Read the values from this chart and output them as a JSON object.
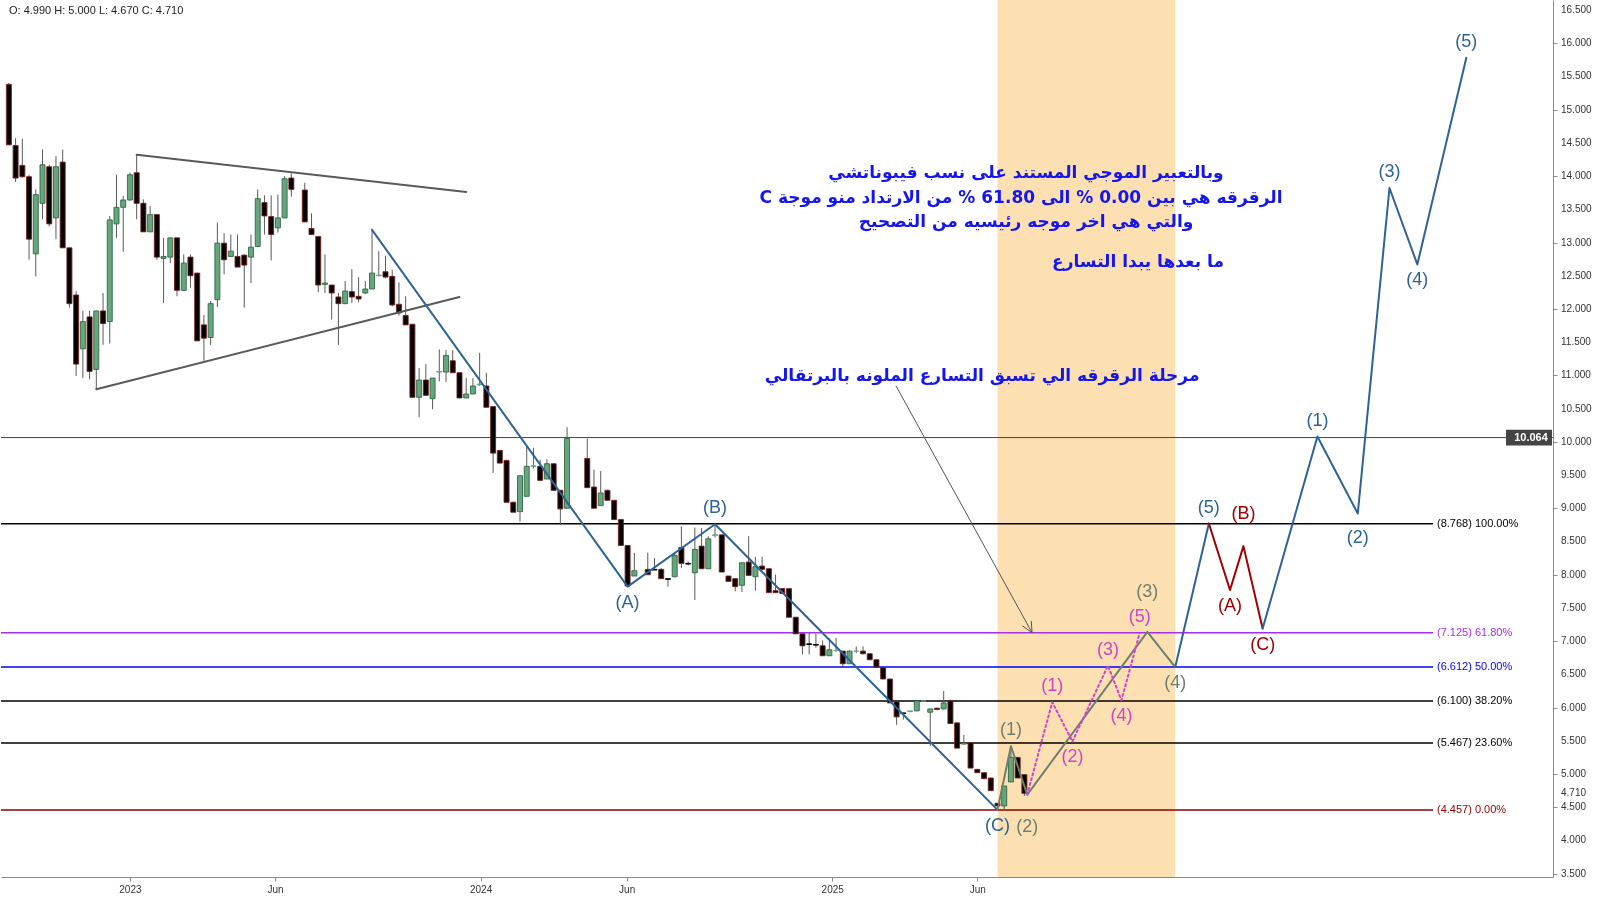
{
  "chart_data": {
    "type": "candlestick",
    "title": "O: 4.990  H: 5.000  L: 4.670  C: 4.710",
    "xlim": [
      "2022-08-25",
      "2027-01-16"
    ],
    "ylim": [
      3.45,
      16.65
    ],
    "xticks": [
      {
        "value": "2023-01-01",
        "label": "2023"
      },
      {
        "value": "2023-06-01",
        "label": "Jun"
      },
      {
        "value": "2024-01-01",
        "label": "2024"
      },
      {
        "value": "2024-06-01",
        "label": "Jun"
      },
      {
        "value": "2025-01-01",
        "label": "2025"
      },
      {
        "value": "2025-06-01",
        "label": "Jun"
      }
    ],
    "yticks": [
      {
        "value": 3.5,
        "label": "3.500"
      },
      {
        "value": 4.0,
        "label": "4.000"
      },
      {
        "value": 4.5,
        "label": "4.500"
      },
      {
        "value": 4.71,
        "label": "4.710"
      },
      {
        "value": 5.0,
        "label": "5.000"
      },
      {
        "value": 5.5,
        "label": "5.500"
      },
      {
        "value": 6.0,
        "label": "6.000"
      },
      {
        "value": 6.5,
        "label": "6.500"
      },
      {
        "value": 7.0,
        "label": "7.000"
      },
      {
        "value": 7.5,
        "label": "7.500"
      },
      {
        "value": 8.0,
        "label": "8.000"
      },
      {
        "value": 8.5,
        "label": "8.500"
      },
      {
        "value": 9.0,
        "label": "9.000"
      },
      {
        "value": 9.5,
        "label": "9.500"
      },
      {
        "value": 10.0,
        "label": "10.000"
      },
      {
        "value": 10.5,
        "label": "10.500"
      },
      {
        "value": 11.0,
        "label": "11.000"
      },
      {
        "value": 11.5,
        "label": "11.500"
      },
      {
        "value": 12.0,
        "label": "12.000"
      },
      {
        "value": 12.5,
        "label": "12.500"
      },
      {
        "value": 13.0,
        "label": "13.000"
      },
      {
        "value": 13.5,
        "label": "13.500"
      },
      {
        "value": 14.0,
        "label": "14.000"
      },
      {
        "value": 14.5,
        "label": "14.500"
      },
      {
        "value": 15.0,
        "label": "15.000"
      },
      {
        "value": 15.5,
        "label": "15.500"
      },
      {
        "value": 16.0,
        "label": "16.000"
      },
      {
        "value": 16.5,
        "label": "16.500"
      }
    ],
    "x": [
      "2022-08-28",
      "2022-09-04",
      "2022-09-11",
      "2022-09-18",
      "2022-09-25",
      "2022-10-02",
      "2022-10-09",
      "2022-10-16",
      "2022-10-23",
      "2022-10-30",
      "2022-11-06",
      "2022-11-13",
      "2022-11-20",
      "2022-11-27",
      "2022-12-04",
      "2022-12-11",
      "2022-12-18",
      "2022-12-25",
      "2023-01-01",
      "2023-01-08",
      "2023-01-15",
      "2023-01-22",
      "2023-01-29",
      "2023-02-05",
      "2023-02-12",
      "2023-02-19",
      "2023-02-26",
      "2023-03-05",
      "2023-03-12",
      "2023-03-19",
      "2023-03-26",
      "2023-04-02",
      "2023-04-09",
      "2023-04-16",
      "2023-04-23",
      "2023-04-30",
      "2023-05-07",
      "2023-05-14",
      "2023-05-21",
      "2023-05-28",
      "2023-06-04",
      "2023-06-11",
      "2023-06-18",
      "2023-07-02",
      "2023-07-09",
      "2023-07-16",
      "2023-07-23",
      "2023-07-30",
      "2023-08-06",
      "2023-08-13",
      "2023-08-20",
      "2023-08-27",
      "2023-09-03",
      "2023-09-10",
      "2023-09-17",
      "2023-09-24",
      "2023-10-01",
      "2023-10-08",
      "2023-10-15",
      "2023-10-22",
      "2023-10-29",
      "2023-11-05",
      "2023-11-12",
      "2023-11-19",
      "2023-11-26",
      "2023-12-03",
      "2023-12-10",
      "2023-12-17",
      "2023-12-24",
      "2023-12-31",
      "2024-01-07",
      "2024-01-14",
      "2024-01-21",
      "2024-01-28",
      "2024-02-04",
      "2024-02-11",
      "2024-02-18",
      "2024-02-25",
      "2024-03-03",
      "2024-03-10",
      "2024-03-17",
      "2024-03-24",
      "2024-03-31",
      "2024-04-21",
      "2024-04-28",
      "2024-05-05",
      "2024-05-12",
      "2024-05-19",
      "2024-05-26",
      "2024-06-02",
      "2024-06-09",
      "2024-06-23",
      "2024-06-30",
      "2024-07-07",
      "2024-07-14",
      "2024-07-21",
      "2024-07-28",
      "2024-08-04",
      "2024-08-11",
      "2024-08-18",
      "2024-08-25",
      "2024-09-01",
      "2024-09-08",
      "2024-09-15",
      "2024-09-22",
      "2024-09-29",
      "2024-10-06",
      "2024-10-13",
      "2024-10-20",
      "2024-10-27",
      "2024-11-03",
      "2024-11-10",
      "2024-11-17",
      "2024-11-24",
      "2024-12-01",
      "2024-12-08",
      "2024-12-15",
      "2024-12-22",
      "2024-12-29",
      "2025-01-05",
      "2025-01-12",
      "2025-01-19",
      "2025-01-26",
      "2025-02-02",
      "2025-02-09",
      "2025-02-16",
      "2025-02-23",
      "2025-03-02",
      "2025-03-09",
      "2025-03-16",
      "2025-03-23",
      "2025-03-30",
      "2025-04-06",
      "2025-04-13",
      "2025-04-20",
      "2025-04-27",
      "2025-05-04",
      "2025-05-11",
      "2025-05-18",
      "2025-05-25",
      "2025-06-01",
      "2025-06-08",
      "2025-06-15",
      "2025-06-22",
      "2025-06-29",
      "2025-07-06",
      "2025-07-13",
      "2025-07-20"
    ],
    "ohlc": [
      [
        15.38,
        15.4,
        14.47,
        14.47
      ],
      [
        14.46,
        14.57,
        13.91,
        13.97
      ],
      [
        14.16,
        14.56,
        13.97,
        13.99
      ],
      [
        13.99,
        14.02,
        12.74,
        13.05
      ],
      [
        12.83,
        13.8,
        12.49,
        13.72
      ],
      [
        13.59,
        14.4,
        13.35,
        14.17
      ],
      [
        14.14,
        14.17,
        13.24,
        13.28
      ],
      [
        13.37,
        14.3,
        13.05,
        14.14
      ],
      [
        14.21,
        14.4,
        12.92,
        12.92
      ],
      [
        12.92,
        12.92,
        12.02,
        12.08
      ],
      [
        12.21,
        12.27,
        10.99,
        11.17
      ],
      [
        11.4,
        11.97,
        10.96,
        11.81
      ],
      [
        11.88,
        11.97,
        10.94,
        11.06
      ],
      [
        11.09,
        11.97,
        10.79,
        11.97
      ],
      [
        11.97,
        12.24,
        11.46,
        11.78
      ],
      [
        11.81,
        13.4,
        11.48,
        13.34
      ],
      [
        13.28,
        14.02,
        13.07,
        13.53
      ],
      [
        13.53,
        13.7,
        12.86,
        13.64
      ],
      [
        13.64,
        14.05,
        13.63,
        14.02
      ],
      [
        14.05,
        14.32,
        13.35,
        13.59
      ],
      [
        13.59,
        13.65,
        13.16,
        13.16
      ],
      [
        13.16,
        13.55,
        13.16,
        13.42
      ],
      [
        13.42,
        13.42,
        12.74,
        12.78
      ],
      [
        12.76,
        13.07,
        12.09,
        12.79
      ],
      [
        12.78,
        13.07,
        12.69,
        13.07
      ],
      [
        13.07,
        13.07,
        12.19,
        12.28
      ],
      [
        12.28,
        12.82,
        12.27,
        12.69
      ],
      [
        12.78,
        12.82,
        12.32,
        12.5
      ],
      [
        12.54,
        12.54,
        11.52,
        11.52
      ],
      [
        11.76,
        11.91,
        11.22,
        11.56
      ],
      [
        11.57,
        12.12,
        11.46,
        12.08
      ],
      [
        12.14,
        13.3,
        12.03,
        12.99
      ],
      [
        12.99,
        13.14,
        12.52,
        12.74
      ],
      [
        12.79,
        13.12,
        12.78,
        12.87
      ],
      [
        12.79,
        13.12,
        12.63,
        12.63
      ],
      [
        12.81,
        12.82,
        12.02,
        12.66
      ],
      [
        12.78,
        13.12,
        12.39,
        12.93
      ],
      [
        12.94,
        13.8,
        12.94,
        13.66
      ],
      [
        13.6,
        13.71,
        13.12,
        13.4
      ],
      [
        13.39,
        13.71,
        12.73,
        13.12
      ],
      [
        13.22,
        13.72,
        13.15,
        13.37
      ],
      [
        13.37,
        14.0,
        13.37,
        13.96
      ],
      [
        13.97,
        14.04,
        13.69,
        13.8
      ],
      [
        13.79,
        13.9,
        13.31,
        13.31
      ],
      [
        13.21,
        13.44,
        13.12,
        13.12
      ],
      [
        13.09,
        13.09,
        12.25,
        12.36
      ],
      [
        12.37,
        12.82,
        12.24,
        12.39
      ],
      [
        12.36,
        12.36,
        11.84,
        12.24
      ],
      [
        12.18,
        12.24,
        11.46,
        12.08
      ],
      [
        12.08,
        12.42,
        12.07,
        12.27
      ],
      [
        12.26,
        12.6,
        12.09,
        12.18
      ],
      [
        12.19,
        12.48,
        12.1,
        12.15
      ],
      [
        12.24,
        12.42,
        12.22,
        12.3
      ],
      [
        12.3,
        13.19,
        12.3,
        12.54
      ],
      [
        12.5,
        12.87,
        12.49,
        12.51
      ],
      [
        12.56,
        12.8,
        12.46,
        12.48
      ],
      [
        12.49,
        12.59,
        12.04,
        12.06
      ],
      [
        12.07,
        12.4,
        11.9,
        11.94
      ],
      [
        11.9,
        12.19,
        11.76,
        11.76
      ],
      [
        11.77,
        11.77,
        10.66,
        10.67
      ],
      [
        10.67,
        11.11,
        10.37,
        10.93
      ],
      [
        10.93,
        11.17,
        10.7,
        10.7
      ],
      [
        10.65,
        10.96,
        10.49,
        10.96
      ],
      [
        11.05,
        11.39,
        10.91,
        11.06
      ],
      [
        11.05,
        11.38,
        10.9,
        11.3
      ],
      [
        11.22,
        11.38,
        11.04,
        11.04
      ],
      [
        11.04,
        11.04,
        10.66,
        10.66
      ],
      [
        10.66,
        10.96,
        10.66,
        10.72
      ],
      [
        10.72,
        10.96,
        10.72,
        10.84
      ],
      [
        10.86,
        11.34,
        10.84,
        10.87
      ],
      [
        10.84,
        11.04,
        10.52,
        10.52
      ],
      [
        10.53,
        10.53,
        9.53,
        9.83
      ],
      [
        9.87,
        9.88,
        9.68,
        9.68
      ],
      [
        9.72,
        9.73,
        9.09,
        9.09
      ],
      [
        9.09,
        9.1,
        8.94,
        8.94
      ],
      [
        8.95,
        9.49,
        8.8,
        9.49
      ],
      [
        9.18,
        9.93,
        9.18,
        9.63
      ],
      [
        9.63,
        9.91,
        9.6,
        9.64
      ],
      [
        9.63,
        9.73,
        9.42,
        9.42
      ],
      [
        9.44,
        9.74,
        9.44,
        9.67
      ],
      [
        9.67,
        9.67,
        9.27,
        9.27
      ],
      [
        9.27,
        9.27,
        8.75,
        8.99
      ],
      [
        9.0,
        10.22,
        9.0,
        10.05
      ],
      [
        9.75,
        10.05,
        9.31,
        9.31
      ],
      [
        9.32,
        9.58,
        9.0,
        9.0
      ],
      [
        9.04,
        9.56,
        9.04,
        9.23
      ],
      [
        9.27,
        9.28,
        9.12,
        9.12
      ],
      [
        9.12,
        9.12,
        8.83,
        8.83
      ],
      [
        8.83,
        8.83,
        8.44,
        8.44
      ],
      [
        8.44,
        8.44,
        7.82,
        7.83
      ],
      [
        7.98,
        8.33,
        7.98,
        8.06
      ],
      [
        8.08,
        8.33,
        8.0,
        8.0
      ],
      [
        8.08,
        8.25,
        8.07,
        8.07
      ],
      [
        8.08,
        8.1,
        7.94,
        7.94
      ],
      [
        7.94,
        7.94,
        7.82,
        7.93
      ],
      [
        7.97,
        8.33,
        7.96,
        8.29
      ],
      [
        8.41,
        8.73,
        8.1,
        8.17
      ],
      [
        8.17,
        8.2,
        8.14,
        8.16
      ],
      [
        8.03,
        8.71,
        7.62,
        8.38
      ],
      [
        8.43,
        8.7,
        8.09,
        8.09
      ],
      [
        8.09,
        8.58,
        8.09,
        8.54
      ],
      [
        8.59,
        8.76,
        8.56,
        8.6
      ],
      [
        8.6,
        8.6,
        8.04,
        8.04
      ],
      [
        7.98,
        7.98,
        7.9,
        7.9
      ],
      [
        7.94,
        7.94,
        7.75,
        7.82
      ],
      [
        7.84,
        8.18,
        7.74,
        8.18
      ],
      [
        8.19,
        8.58,
        7.98,
        7.99
      ],
      [
        7.97,
        8.27,
        7.76,
        8.12
      ],
      [
        8.13,
        8.27,
        8.08,
        8.08
      ],
      [
        8.09,
        8.09,
        7.73,
        7.73
      ],
      [
        7.76,
        8.0,
        7.73,
        7.73
      ],
      [
        7.79,
        7.79,
        7.72,
        7.72
      ],
      [
        7.79,
        7.79,
        7.36,
        7.36
      ],
      [
        7.36,
        7.36,
        7.11,
        7.11
      ],
      [
        7.11,
        7.11,
        6.8,
        6.93
      ],
      [
        6.96,
        7.12,
        6.8,
        6.95
      ],
      [
        6.95,
        7.11,
        6.9,
        6.94
      ],
      [
        6.93,
        7.01,
        6.78,
        6.78
      ],
      [
        6.78,
        7.04,
        6.78,
        6.87
      ],
      [
        6.86,
        7.05,
        6.84,
        6.86
      ],
      [
        6.85,
        6.85,
        6.62,
        6.66
      ],
      [
        6.66,
        6.86,
        6.66,
        6.85
      ],
      [
        6.85,
        6.92,
        6.82,
        6.85
      ],
      [
        6.85,
        6.92,
        6.8,
        6.81
      ],
      [
        6.81,
        6.81,
        6.72,
        6.72
      ],
      [
        6.72,
        6.72,
        6.61,
        6.61
      ],
      [
        6.6,
        6.6,
        6.43,
        6.43
      ],
      [
        6.43,
        6.43,
        6.07,
        6.07
      ],
      [
        6.09,
        6.09,
        5.74,
        5.86
      ],
      [
        5.92,
        5.92,
        5.82,
        5.91
      ],
      [
        5.94,
        5.95,
        5.93,
        5.95
      ],
      [
        5.95,
        6.1,
        5.95,
        6.1
      ],
      [
        6.1,
        6.1,
        6.09,
        6.1
      ],
      [
        5.93,
        5.98,
        5.42,
        5.98
      ],
      [
        5.99,
        6.0,
        5.96,
        5.97
      ],
      [
        5.98,
        6.25,
        5.97,
        6.07
      ],
      [
        6.1,
        6.12,
        5.76,
        5.76
      ],
      [
        5.77,
        5.77,
        5.39,
        5.39
      ],
      [
        5.45,
        5.59,
        5.44,
        5.45
      ],
      [
        5.47,
        5.47,
        5.09,
        5.09
      ],
      [
        5.07,
        5.07,
        5.02,
        5.02
      ],
      [
        5.02,
        5.02,
        4.93,
        4.93
      ],
      [
        4.94,
        4.94,
        4.75,
        4.75
      ],
      [
        4.56,
        4.56,
        4.46,
        4.52
      ],
      [
        4.52,
        4.82,
        4.46,
        4.82
      ],
      [
        4.88,
        5.42,
        4.88,
        5.25
      ],
      [
        5.25,
        5.25,
        4.94,
        4.94
      ],
      [
        4.99,
        5.0,
        4.67,
        4.71
      ]
    ],
    "colors": [
      "#000000",
      "#000000",
      "#000000",
      "#000000",
      "#66a57d",
      "#66a57d",
      "#000000",
      "#66a57d",
      "#000000",
      "#000000",
      "#000000",
      "#66a57d",
      "#000000",
      "#66a57d",
      "#000000",
      "#66a57d",
      "#66a57d",
      "#66a57d",
      "#66a57d",
      "#000000",
      "#000000",
      "#66a57d",
      "#000000",
      "#66a57d",
      "#66a57d",
      "#000000",
      "#66a57d",
      "#000000",
      "#000000",
      "#000000",
      "#66a57d",
      "#66a57d",
      "#000000",
      "#66a57d",
      "#000000",
      "#000000",
      "#66a57d",
      "#66a57d",
      "#000000",
      "#000000",
      "#66a57d",
      "#66a57d",
      "#000000",
      "#000000",
      "#000000",
      "#000000",
      "#66a57d",
      "#000000",
      "#000000",
      "#66a57d",
      "#000000",
      "#000000",
      "#66a57d",
      "#66a57d",
      "#66a57d",
      "#000000",
      "#000000",
      "#000000",
      "#000000",
      "#000000",
      "#66a57d",
      "#000000",
      "#66a57d",
      "#66a57d",
      "#66a57d",
      "#000000",
      "#000000",
      "#66a57d",
      "#66a57d",
      "#66a57d",
      "#000000",
      "#000000",
      "#000000",
      "#000000",
      "#000000",
      "#66a57d",
      "#66a57d",
      "#66a57d",
      "#000000",
      "#66a57d",
      "#000000",
      "#000000",
      "#66a57d",
      "#000000",
      "#000000",
      "#66a57d",
      "#000000",
      "#000000",
      "#000000",
      "#000000",
      "#66a57d",
      "#000000",
      "#000000",
      "#000000",
      "#000000",
      "#66a57d",
      "#000000",
      "#000000",
      "#66a57d",
      "#000000",
      "#66a57d",
      "#66a57d",
      "#000000",
      "#000000",
      "#000000",
      "#66a57d",
      "#000000",
      "#66a57d",
      "#000000",
      "#000000",
      "#000000",
      "#000000",
      "#000000",
      "#000000",
      "#000000",
      "#000000",
      "#000000",
      "#000000",
      "#66a57d",
      "#66a57d",
      "#000000",
      "#66a57d",
      "#66a57d",
      "#000000",
      "#000000",
      "#000000",
      "#000000",
      "#000000",
      "#000000",
      "#000000",
      "#66a57d",
      "#66a57d",
      "#66a57d",
      "#66a57d",
      "#000000",
      "#66a57d",
      "#000000",
      "#000000",
      "#66a57d",
      "#000000",
      "#000000",
      "#000000",
      "#000000",
      "#000000",
      "#66a57d",
      "#66a57d",
      "#000000",
      "#000000"
    ],
    "series": [
      {
        "type": "line",
        "color": "#595959",
        "x": [
          "2023-01-08",
          "2023-12-17"
        ],
        "values": [
          14.32,
          13.76
        ]
      },
      {
        "type": "line",
        "color": "#595959",
        "x": [
          "2022-11-27",
          "2023-12-10"
        ],
        "values": [
          10.79,
          12.18
        ]
      },
      {
        "type": "line",
        "color": "#2e6393",
        "x": [
          "2023-09-10",
          "2024-06-02",
          "2024-09-01",
          "2025-06-22"
        ],
        "values": [
          13.19,
          7.82,
          8.76,
          4.46
        ]
      },
      {
        "type": "line",
        "color": "#6f7f6f",
        "x": [
          "2025-06-22",
          "2025-07-06",
          "2025-07-23",
          "2025-11-25",
          "2025-12-24"
        ],
        "values": [
          4.46,
          5.42,
          4.69,
          7.14,
          6.61
        ]
      },
      {
        "type": "line",
        "color": "#cc44cc",
        "line_style": "dotted",
        "x": [
          "2025-07-23",
          "2025-08-18",
          "2025-09-08",
          "2025-10-15",
          "2025-10-29",
          "2025-11-17"
        ],
        "values": [
          4.69,
          6.08,
          5.49,
          6.63,
          6.11,
          7.12
        ]
      },
      {
        "type": "line",
        "color": "#2e6393",
        "x": [
          "2025-12-24",
          "2026-01-28"
        ],
        "values": [
          6.61,
          8.77
        ]
      },
      {
        "type": "line",
        "color": "#a00000",
        "x": [
          "2026-01-28",
          "2026-02-19",
          "2026-03-05",
          "2026-03-25"
        ],
        "values": [
          8.77,
          7.77,
          8.43,
          7.19
        ]
      },
      {
        "type": "line",
        "color": "#2e6393",
        "x": [
          "2026-03-25",
          "2026-05-21",
          "2026-07-02",
          "2026-08-04",
          "2026-09-02",
          "2026-10-23"
        ],
        "values": [
          7.19,
          10.08,
          8.92,
          13.82,
          12.67,
          15.78
        ]
      }
    ],
    "ref_lines": [
      {
        "axis": "y",
        "value": 10.064,
        "label": "10.064",
        "color": "#444444"
      },
      {
        "axis": "y",
        "value": 8.768,
        "label": "(8.768) 100.00%",
        "color": "#000000"
      },
      {
        "axis": "y",
        "value": 7.125,
        "label": "(7.125) 61.80%",
        "color": "#a52ff0"
      },
      {
        "axis": "y",
        "value": 6.612,
        "label": "(6.612) 50.00%",
        "color": "#0000ff"
      },
      {
        "axis": "y",
        "value": 6.1,
        "label": "(6.100) 38.20%",
        "color": "#000000"
      },
      {
        "axis": "y",
        "value": 5.467,
        "label": "(5.467) 23.60%",
        "color": "#000000"
      },
      {
        "axis": "y",
        "value": 4.457,
        "label": "(4.457) 0.00%",
        "color": "#8b0000"
      }
    ],
    "bands": [
      {
        "axis": "x",
        "from": "2025-06-22",
        "to": "2025-12-24",
        "color": "#fde0b2"
      }
    ],
    "annotations": [
      "وبالتعبير الموجي  المستند على نسب فيبوناتشي",
      "الرقرقه هي بين 0.00 % الى 61.80 % من الارتداد منو موجة C",
      "والتي هي اخر موجه رئيسيه من التصحيح",
      "ما بعدها يبدا التسارع",
      {
        "text": "مرحلة الرقرقه الي تسبق التسارع الملونه بالبرتقالي",
        "x": "2025-07-28",
        "y": 7.125
      },
      {
        "text": "(A)",
        "x": "2024-06-02",
        "y": 7.82
      },
      {
        "text": "(B)",
        "x": "2024-09-01",
        "y": 8.76
      },
      {
        "text": "(C)",
        "x": "2025-06-22",
        "y": 4.46
      },
      {
        "text": "(1)",
        "x": "2025-07-06",
        "y": 5.42
      },
      {
        "text": "(2)",
        "x": "2025-07-23",
        "y": 4.69
      },
      {
        "text": "(1)",
        "x": "2025-08-18",
        "y": 6.08
      },
      {
        "text": "(2)",
        "x": "2025-09-08",
        "y": 5.49
      },
      {
        "text": "(3)",
        "x": "2025-10-15",
        "y": 6.63
      },
      {
        "text": "(4)",
        "x": "2025-10-29",
        "y": 6.11
      },
      {
        "text": "(5)",
        "x": "2025-11-17",
        "y": 7.12
      },
      {
        "text": "(3)",
        "x": "2025-11-25",
        "y": 7.14
      },
      {
        "text": "(4)",
        "x": "2025-12-24",
        "y": 6.61
      },
      {
        "text": "(5)",
        "x": "2026-01-28",
        "y": 8.77
      },
      {
        "text": "(A)",
        "x": "2026-02-19",
        "y": 7.77
      },
      {
        "text": "(B)",
        "x": "2026-03-05",
        "y": 8.43
      },
      {
        "text": "(C)",
        "x": "2026-03-25",
        "y": 7.19
      },
      {
        "text": "(1)",
        "x": "2026-05-21",
        "y": 10.08
      },
      {
        "text": "(2)",
        "x": "2026-07-02",
        "y": 8.92
      },
      {
        "text": "(3)",
        "x": "2026-08-04",
        "y": 13.82
      },
      {
        "text": "(4)",
        "x": "2026-09-02",
        "y": 12.67
      },
      {
        "text": "(5)",
        "x": "2026-10-23",
        "y": 15.78
      }
    ]
  }
}
